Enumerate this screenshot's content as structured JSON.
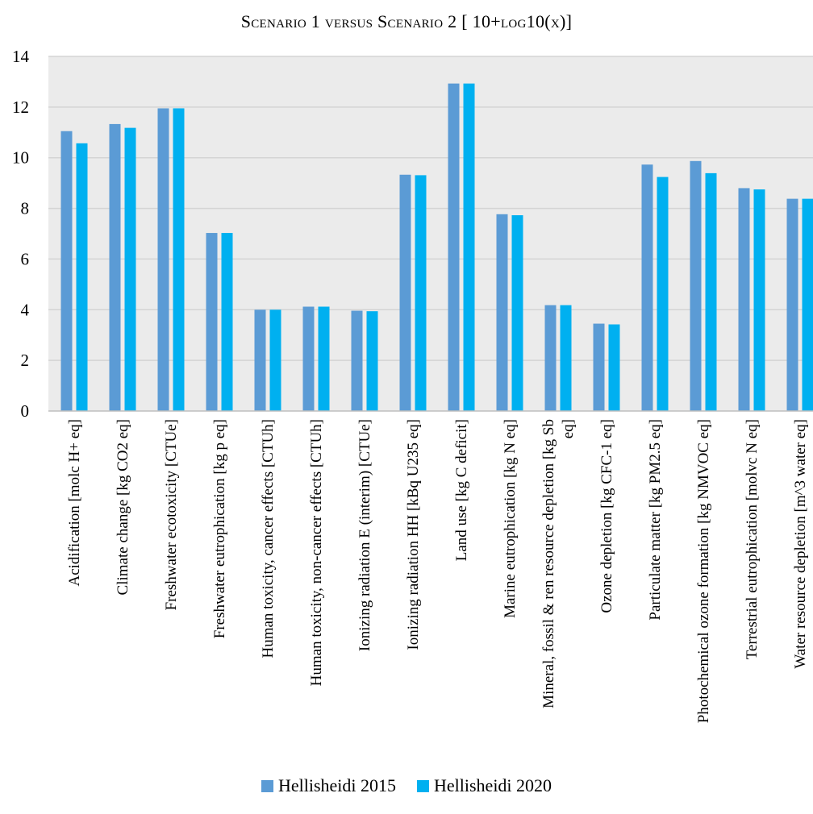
{
  "chart_data": {
    "type": "bar",
    "title": "Scenario 1 versus Scenario 2 [ 10+log10(x)]",
    "xlabel": "",
    "ylabel": "",
    "ylim": [
      0,
      14
    ],
    "yticks": [
      0,
      2,
      4,
      6,
      8,
      10,
      12,
      14
    ],
    "grid": true,
    "legend_position": "bottom",
    "categories": [
      "Acidification [molc H+ eq]",
      "Climate change [kg CO2 eq]",
      "Freshwater ecotoxicity [CTUe]",
      "Freshwater eutrophication [kg p eq]",
      "Human toxicity, cancer effects [CTUh]",
      "Human toxicity, non-cancer effects [CTUh]",
      "Ionizing radiation E (interim) [CTUe]",
      "Ionizing radiation HH  [kBq U235 eq]",
      "Land use [kg C deficit]",
      "Marine eutrophication [kg N eq]",
      "Mineral, fossil & ren resource depletion [kg Sb eq]",
      "Ozone depletion [kg CFC-1 eq]",
      "Particulate matter [kg PM2.5 eq]",
      "Photochemical ozone formation [kg NMVOC eq]",
      "Terrestrial eutrophication [molvc N eq]",
      "Water resource depletion [m^3 water eq]"
    ],
    "series": [
      {
        "name": "Hellisheidi 2015",
        "color": "#5b9bd5",
        "values": [
          11.05,
          11.33,
          11.95,
          7.03,
          4.0,
          4.12,
          3.96,
          9.33,
          12.93,
          7.77,
          4.18,
          3.45,
          9.73,
          9.87,
          8.8,
          8.38
        ]
      },
      {
        "name": "Hellisheidi 2020",
        "color": "#00b0f0",
        "values": [
          10.57,
          11.18,
          11.95,
          7.03,
          4.0,
          4.12,
          3.94,
          9.31,
          12.93,
          7.73,
          4.18,
          3.42,
          9.24,
          9.39,
          8.75,
          8.38
        ]
      }
    ]
  }
}
